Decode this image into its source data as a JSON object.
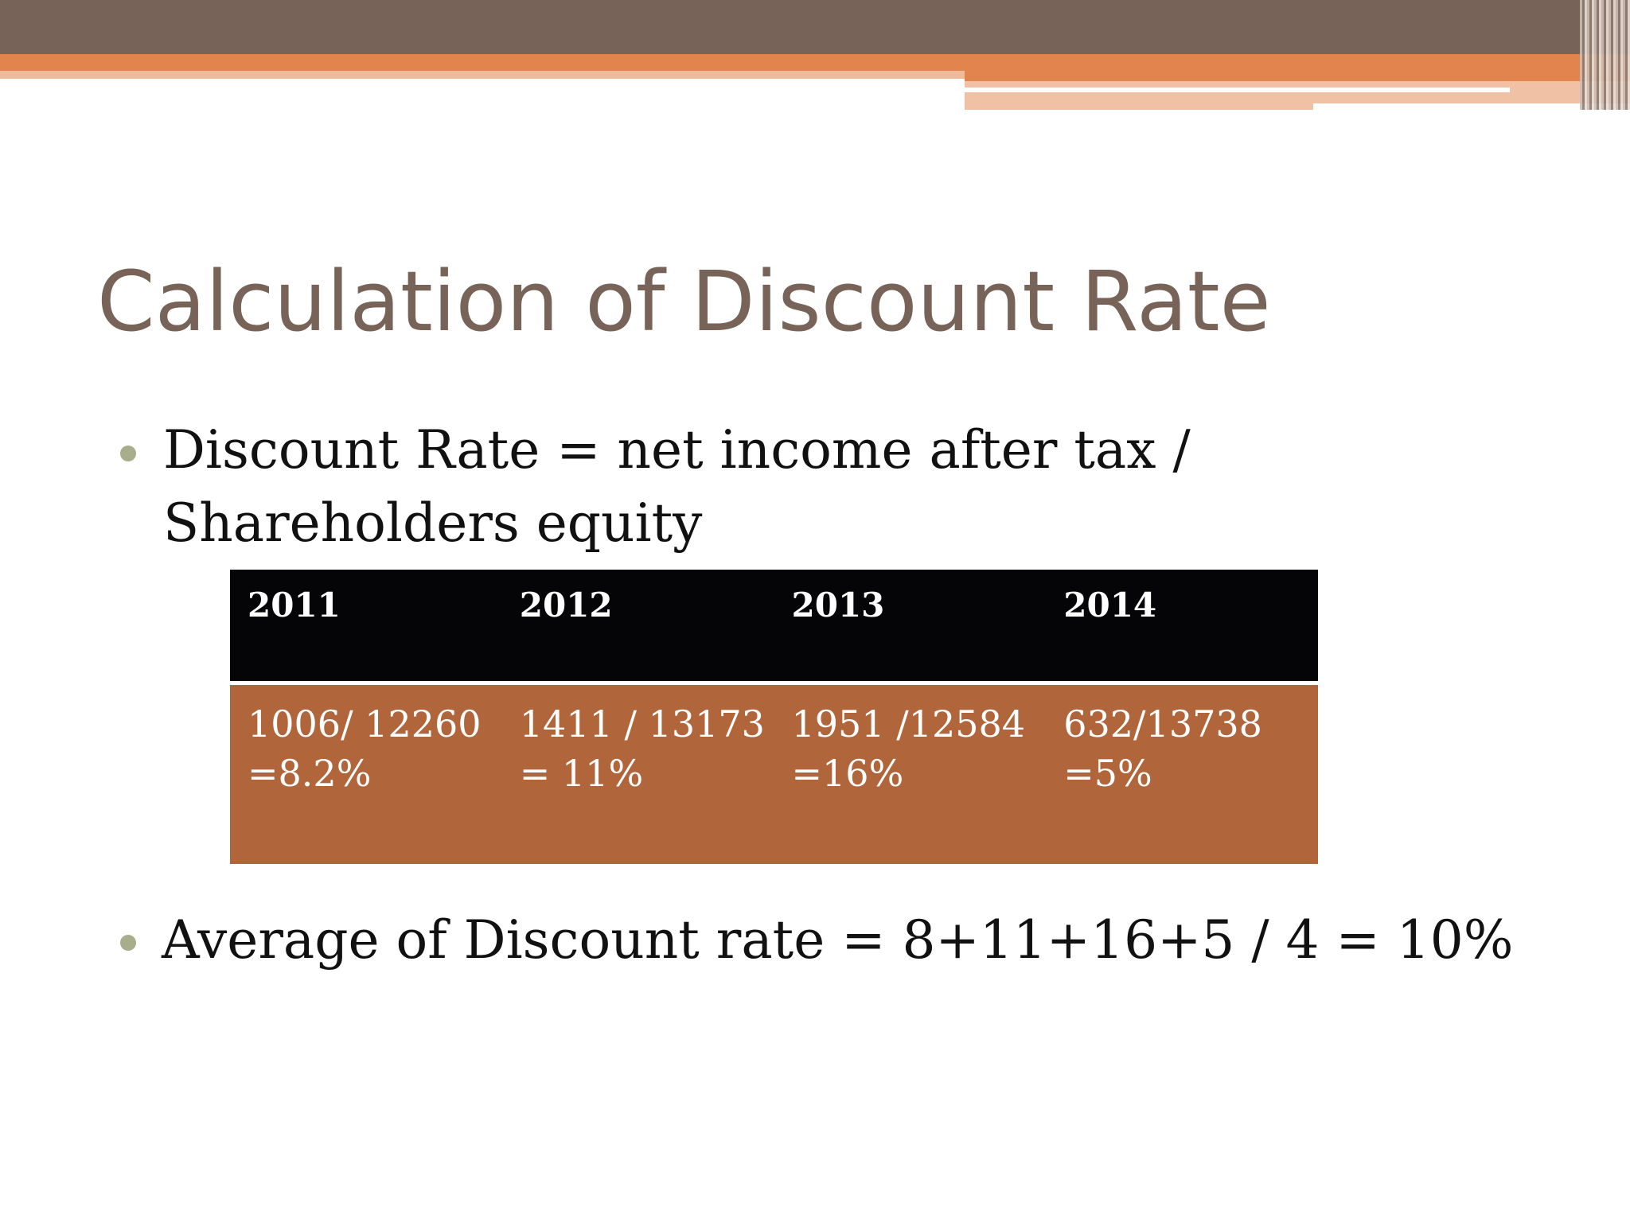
{
  "slide": {
    "title": "Calculation of Discount Rate",
    "bullets": {
      "formula": "Discount Rate = net income after tax / Shareholders equity",
      "average": "Average of Discount rate = 8+11+16+5 / 4 = 10%"
    },
    "table": {
      "headers": [
        "2011",
        "2012",
        "2013",
        "2014"
      ],
      "cells": [
        {
          "calc": "1006/ 12260",
          "result": "=8.2%"
        },
        {
          "calc": "1411 / 13173",
          "result": "= 11%"
        },
        {
          "calc": "1951 /12584",
          "result": "=16%"
        },
        {
          "calc": "632/13738",
          "result": "=5%"
        }
      ]
    }
  },
  "colors": {
    "header_band": "#776357",
    "accent_orange": "#e1844e",
    "title_text": "#776357",
    "table_header_bg": "#050406",
    "table_body_bg": "#b0653a",
    "bullet_dot": "#a8ad8c"
  }
}
